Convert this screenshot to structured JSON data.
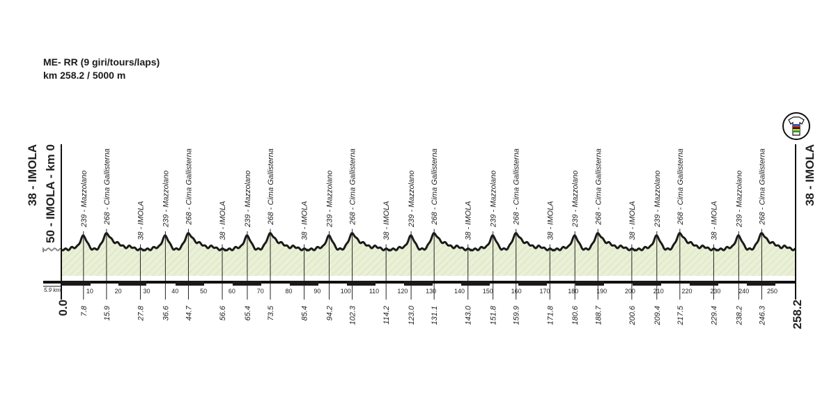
{
  "header": {
    "title": "ME- RR  (9 giri/tours/laps)",
    "subtitle": "km 258.2 / 5000 m"
  },
  "jersey_icon": "rainbow-jersey-icon",
  "chart_data": {
    "type": "area",
    "unit": "km",
    "total_km": 258.2,
    "xlim": [
      0,
      258.2
    ],
    "ticks": [
      10,
      20,
      30,
      40,
      50,
      60,
      70,
      80,
      90,
      100,
      110,
      120,
      130,
      140,
      150,
      160,
      170,
      180,
      190,
      200,
      210,
      220,
      230,
      240,
      250
    ],
    "scale_label": "5.9 km",
    "start": {
      "elevation_label": "38 - IMOLA",
      "sub_label": "50 - IMOLA - km 0",
      "km_label": "0.0"
    },
    "finish": {
      "elevation_label": "38 - IMOLA",
      "km_label": "258.2"
    },
    "waypoints": [
      {
        "km": 7.8,
        "km_label": "7.8",
        "label": "239 - Mazzolano"
      },
      {
        "km": 15.9,
        "km_label": "15.9",
        "label": "268 - Cima Gallisterna"
      },
      {
        "km": 27.8,
        "km_label": "27.8",
        "label": "38 - IMOLA"
      },
      {
        "km": 36.6,
        "km_label": "36.6",
        "label": "239 - Mazzolano"
      },
      {
        "km": 44.7,
        "km_label": "44.7",
        "label": "268 - Cima Gallisterna"
      },
      {
        "km": 56.6,
        "km_label": "56.6",
        "label": "38 - IMOLA"
      },
      {
        "km": 65.4,
        "km_label": "65.4",
        "label": "239 - Mazzolano"
      },
      {
        "km": 73.5,
        "km_label": "73.5",
        "label": "268 - Cima Gallisterna"
      },
      {
        "km": 85.4,
        "km_label": "85.4",
        "label": "38 - IMOLA"
      },
      {
        "km": 94.2,
        "km_label": "94.2",
        "label": "239 - Mazzolano"
      },
      {
        "km": 102.3,
        "km_label": "102.3",
        "label": "268 - Cima Gallisterna"
      },
      {
        "km": 114.2,
        "km_label": "114.2",
        "label": "38 - IMOLA"
      },
      {
        "km": 123.0,
        "km_label": "123.0",
        "label": "239 - Mazzolano"
      },
      {
        "km": 131.1,
        "km_label": "131.1",
        "label": "268 - Cima Gallisterna"
      },
      {
        "km": 143.0,
        "km_label": "143.0",
        "label": "38 - IMOLA"
      },
      {
        "km": 151.8,
        "km_label": "151.8",
        "label": "239 - Mazzolano"
      },
      {
        "km": 159.9,
        "km_label": "159.9",
        "label": "268 - Cima Gallisterna"
      },
      {
        "km": 171.8,
        "km_label": "171.8",
        "label": "38 - IMOLA"
      },
      {
        "km": 180.6,
        "km_label": "180.6",
        "label": "239 - Mazzolano"
      },
      {
        "km": 188.7,
        "km_label": "188.7",
        "label": "268 - Cima Gallisterna"
      },
      {
        "km": 200.6,
        "km_label": "200.6",
        "label": "38 - IMOLA"
      },
      {
        "km": 209.4,
        "km_label": "209.4",
        "label": "239 - Mazzolano"
      },
      {
        "km": 217.5,
        "km_label": "217.5",
        "label": "268 - Cima Gallisterna"
      },
      {
        "km": 229.4,
        "km_label": "229.4",
        "label": "38 - IMOLA"
      },
      {
        "km": 238.2,
        "km_label": "238.2",
        "label": "239 - Mazzolano"
      },
      {
        "km": 246.3,
        "km_label": "246.3",
        "label": "268 - Cima Gallisterna"
      }
    ],
    "colors": {
      "fill": "#e9f0d6",
      "hatch": "#c9d6b0",
      "line": "#1a1a1a",
      "bar": "#1a1a1a"
    }
  }
}
